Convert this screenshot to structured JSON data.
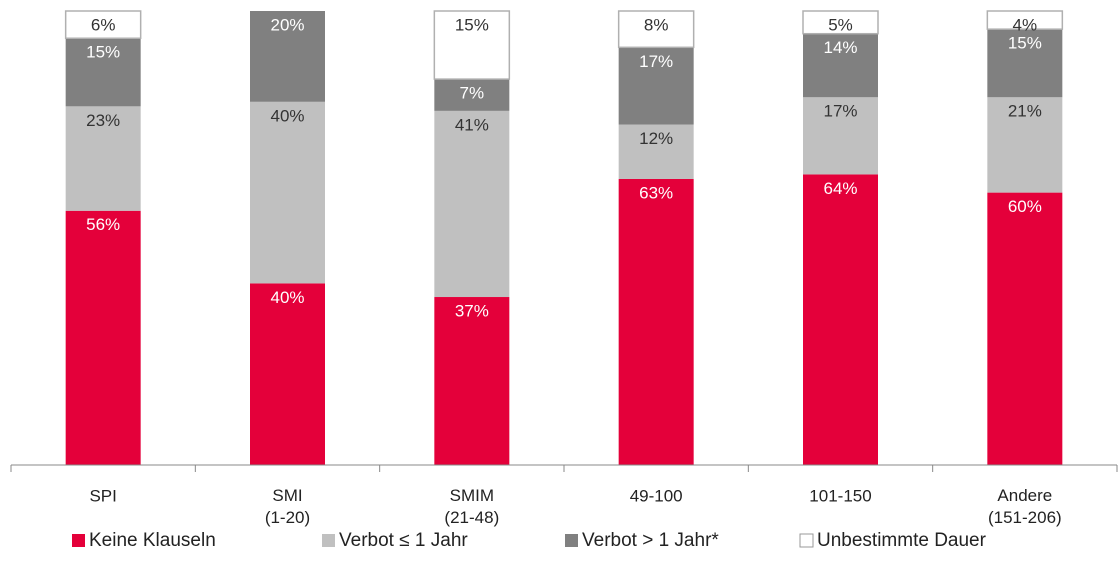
{
  "chart_data": {
    "type": "stacked_bar",
    "categories": [
      "SPI",
      "SMI\n(1-20)",
      "SMIM\n(21-48)",
      "49-100",
      "101-150",
      "Andere\n(151-206)"
    ],
    "ylim": [
      0,
      100
    ],
    "legend": "bottom",
    "series": [
      {
        "name": "Keine Klauseln",
        "color": "#e4003a",
        "label_color": "#ffffff",
        "values": [
          56,
          40,
          37,
          63,
          64,
          60
        ],
        "value_labels": [
          "56%",
          "40%",
          "37%",
          "63%",
          "64%",
          "60%"
        ]
      },
      {
        "name": "Verbot ≤ 1 Jahr",
        "color": "#c0c0c0",
        "label_color": "#333333",
        "values": [
          23,
          40,
          41,
          12,
          17,
          21
        ],
        "value_labels": [
          "23%",
          "40%",
          "41%",
          "12%",
          "17%",
          "21%"
        ]
      },
      {
        "name": "Verbot > 1 Jahr*",
        "color": "#808080",
        "label_color": "#ffffff",
        "values": [
          15,
          20,
          7,
          17,
          14,
          15
        ],
        "value_labels": [
          "15%",
          "20%",
          "7%",
          "17%",
          "14%",
          "15%"
        ]
      },
      {
        "name": "Unbestimmte Dauer",
        "color": "#ffffff",
        "label_color": "#333333",
        "values": [
          6,
          null,
          15,
          8,
          5,
          4
        ],
        "value_labels": [
          "6%",
          null,
          "15%",
          "8%",
          "5%",
          "4%"
        ]
      }
    ]
  }
}
